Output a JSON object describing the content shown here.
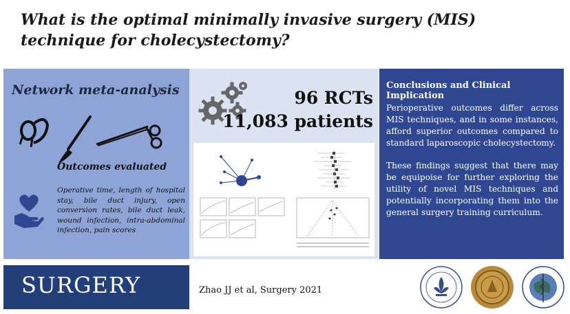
{
  "title": "What is the optimal minimally invasive surgery (MIS) technique for cholecystectomy?",
  "left": {
    "heading": "Network meta-analysis",
    "outcomes_heading": "Outcomes evaluated",
    "outcomes_text": "Operative time, length of hospital stay, bile duct injury, open conversion rates, bile duct leak, wound infection, intra-abdominal infection, pain scores"
  },
  "middle": {
    "rcts": "96 RCTs",
    "patients": "11,083 patients"
  },
  "right": {
    "heading": "Conclusions and Clinical Implication",
    "para1": "Perioperative outcomes differ across MIS techniques, and in some instances, afford superior outcomes compared to standard laparoscopic cholecystectomy.",
    "para2": "These findings suggest that there may be equipoise for further exploring the utility of novel MIS techniques and potentially incorporating them into the general surgery training curriculum."
  },
  "footer": {
    "journal": "SURGERY",
    "citation": "Zhao JJ et al, Surgery 2021"
  },
  "icons": {
    "tools": "surgical-instruments-icon",
    "heart_hand": "heart-in-hand-icon",
    "gears": "gears-icon"
  },
  "colors": {
    "left_panel": "#8ea4d6",
    "middle_panel": "#dbe3f2",
    "right_panel": "#2f4791",
    "journal_block": "#223f7a"
  }
}
